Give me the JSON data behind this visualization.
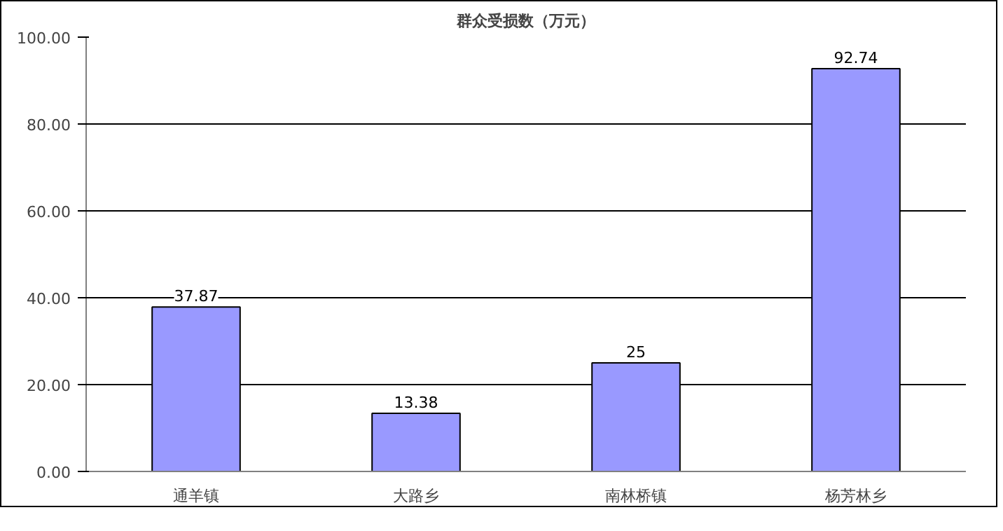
{
  "chart_data": {
    "type": "bar",
    "title": "群众受损数（万元）",
    "categories": [
      "通羊镇",
      "大路乡",
      "南林桥镇",
      "杨芳林乡"
    ],
    "values": [
      37.87,
      13.38,
      25,
      92.74
    ],
    "color": "#9999ff",
    "ylim": [
      0,
      100
    ],
    "yticks": [
      {
        "value": 0,
        "label": "0.00"
      },
      {
        "value": 20,
        "label": "20.00"
      },
      {
        "value": 40,
        "label": "40.00"
      },
      {
        "value": 60,
        "label": "60.00"
      },
      {
        "value": 80,
        "label": "80.00"
      },
      {
        "value": 100,
        "label": "100.00"
      }
    ],
    "grid": "y",
    "data_labels": true
  }
}
